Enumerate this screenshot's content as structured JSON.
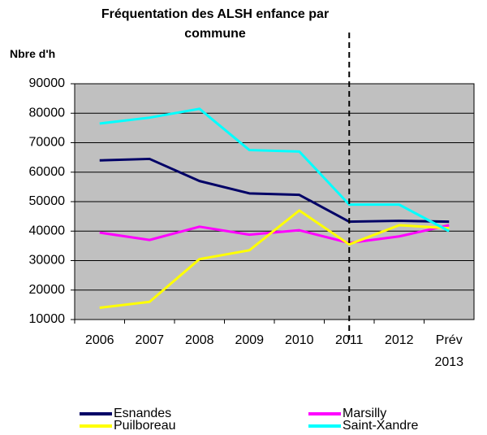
{
  "chart_data": {
    "type": "line",
    "title": "Fréquentation des ALSH enfance par commune",
    "y_label": "Nbre d'h",
    "categories": [
      "2006",
      "2007",
      "2008",
      "2009",
      "2010",
      "2011",
      "2012",
      "Prév 2013"
    ],
    "series": [
      {
        "name": "Esnandes",
        "color": "#000066",
        "values": [
          64000,
          64500,
          57000,
          52800,
          52300,
          43200,
          43500,
          43200
        ]
      },
      {
        "name": "Marsilly",
        "color": "#ff00ff",
        "values": [
          39500,
          37000,
          41500,
          38800,
          40300,
          36000,
          38200,
          42000
        ]
      },
      {
        "name": "Puilboreau",
        "color": "#ffff00",
        "values": [
          14000,
          16000,
          30500,
          33500,
          47000,
          35500,
          42000,
          41000
        ]
      },
      {
        "name": "Saint-Xandre",
        "color": "#00ffff",
        "values": [
          76500,
          78500,
          81500,
          67500,
          67000,
          49000,
          49000,
          40000
        ]
      }
    ],
    "ylim": [
      10000,
      90000
    ],
    "yticks": [
      10000,
      20000,
      30000,
      40000,
      50000,
      60000,
      70000,
      80000,
      90000
    ],
    "grid": true,
    "plot_background": "#c0c0c0",
    "marker_category": "2011"
  }
}
